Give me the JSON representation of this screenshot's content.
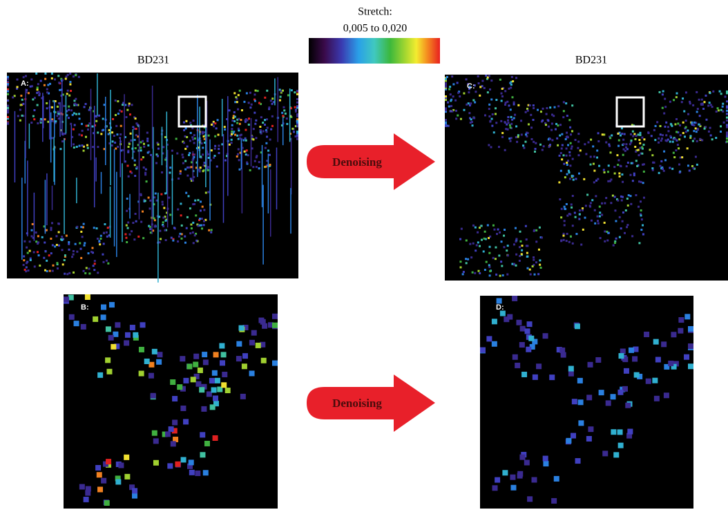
{
  "figure": {
    "stretch_label": "Stretch:",
    "stretch_range": "0,005 to 0,020",
    "titles": [
      "BD231",
      "BD231"
    ],
    "panels": [
      {
        "label": "A:"
      },
      {
        "label": "B:"
      },
      {
        "label": "C:"
      },
      {
        "label": "D:"
      }
    ],
    "arrows": [
      "Denoising",
      "Denoising"
    ]
  }
}
